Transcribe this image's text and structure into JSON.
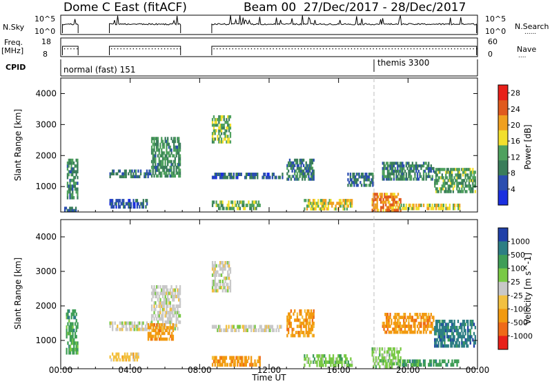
{
  "header": {
    "station": "Dome C East (fitACF)",
    "beam": "Beam 00",
    "date_range": "27/Dec/2017 - 28/Dec/2017"
  },
  "strips": {
    "nsky": {
      "label": "N.Sky",
      "ticks": [
        "10^5",
        "10^0"
      ],
      "right_ticks": [
        "10^5",
        "10^0"
      ],
      "right_label": "N.Search",
      "right_marker": "......"
    },
    "freq": {
      "label_line1": "Freq.",
      "label_line2": "[MHz]",
      "ticks": [
        "18",
        "8"
      ],
      "right_ticks": [
        "60",
        "0"
      ],
      "right_label": "Nave",
      "right_marker": "...."
    },
    "cpid": {
      "label": "CPID",
      "modes": [
        "normal (fast) 151",
        "themis 3300"
      ]
    }
  },
  "colors": {
    "power_scale": [
      "#1b2fe0",
      "#2b4eb0",
      "#3a7d5a",
      "#4fa15e",
      "#f2df2d",
      "#f0a020",
      "#e05a1e",
      "#e8201a"
    ],
    "velocity_scale": [
      "#e8201a",
      "#ef6a18",
      "#f29a10",
      "#f2c040",
      "#c8c8c8",
      "#79c945",
      "#3f9e57",
      "#2c7e84",
      "#2040a8"
    ],
    "gray": "#c8c8c8"
  },
  "chart_data": [
    {
      "type": "heatmap",
      "title": "",
      "xlabel": "",
      "ylabel": "Slant Range [km]",
      "xlim_hours": [
        0,
        24
      ],
      "ylim_km": [
        180,
        4500
      ],
      "x_tick_labels": [
        "00:00",
        "04:00",
        "08:00",
        "12:00",
        "16:00",
        "20:00",
        "00:00"
      ],
      "y_tick_values": [
        1000,
        2000,
        3000,
        4000
      ],
      "colorbar": {
        "label": "Power [dB]",
        "ticks": [
          4,
          8,
          12,
          16,
          20,
          24,
          28
        ],
        "range": [
          0,
          30
        ]
      },
      "regions": [
        {
          "t": [
            0.35,
            1.0
          ],
          "r": [
            600,
            1900
          ],
          "level": 10
        },
        {
          "t": [
            0.2,
            0.9
          ],
          "r": [
            200,
            350
          ],
          "level": 7
        },
        {
          "t": [
            2.8,
            5.2
          ],
          "r": [
            1280,
            1550
          ],
          "level": 8
        },
        {
          "t": [
            5.2,
            6.9
          ],
          "r": [
            1300,
            2600
          ],
          "level": 11
        },
        {
          "t": [
            2.8,
            5.0
          ],
          "r": [
            300,
            600
          ],
          "level": 6
        },
        {
          "t": [
            8.7,
            9.8
          ],
          "r": [
            2400,
            3300
          ],
          "level": 14
        },
        {
          "t": [
            8.7,
            12.8
          ],
          "r": [
            1250,
            1450
          ],
          "level": 7
        },
        {
          "t": [
            8.7,
            11.5
          ],
          "r": [
            250,
            550
          ],
          "level": 13
        },
        {
          "t": [
            13.0,
            14.6
          ],
          "r": [
            1200,
            1900
          ],
          "level": 9
        },
        {
          "t": [
            14.0,
            16.8
          ],
          "r": [
            240,
            600
          ],
          "level": 17
        },
        {
          "t": [
            16.5,
            18.0
          ],
          "r": [
            1000,
            1450
          ],
          "level": 8
        },
        {
          "t": [
            17.9,
            19.6
          ],
          "r": [
            200,
            800
          ],
          "level": 22
        },
        {
          "t": [
            18.5,
            21.5
          ],
          "r": [
            1200,
            1800
          ],
          "level": 10
        },
        {
          "t": [
            21.5,
            23.9
          ],
          "r": [
            800,
            1600
          ],
          "level": 12
        },
        {
          "t": [
            19.5,
            23.0
          ],
          "r": [
            250,
            450
          ],
          "level": 18
        }
      ]
    },
    {
      "type": "heatmap",
      "title": "",
      "xlabel": "Time UT",
      "ylabel": "Slant Range [km]",
      "xlim_hours": [
        0,
        24
      ],
      "ylim_km": [
        180,
        4500
      ],
      "x_tick_labels": [
        "00:00",
        "04:00",
        "08:00",
        "12:00",
        "16:00",
        "20:00",
        "00:00"
      ],
      "y_tick_values": [
        1000,
        2000,
        3000,
        4000
      ],
      "colorbar": {
        "label": "Velocity [m s^-1]",
        "ticks": [
          "1000",
          "500",
          "100",
          "25",
          "-25",
          "-100",
          "-500",
          "-1000"
        ]
      },
      "regions": [
        {
          "t": [
            0.3,
            1.0
          ],
          "r": [
            600,
            1900
          ],
          "vel_class": 6
        },
        {
          "t": [
            2.8,
            5.2
          ],
          "r": [
            1280,
            1550
          ],
          "vel_class": 4
        },
        {
          "t": [
            5.2,
            6.9
          ],
          "r": [
            1300,
            2600
          ],
          "vel_class": 4
        },
        {
          "t": [
            5.0,
            6.5
          ],
          "r": [
            1000,
            1500
          ],
          "vel_class": 2
        },
        {
          "t": [
            2.8,
            4.5
          ],
          "r": [
            400,
            650
          ],
          "vel_class": 3
        },
        {
          "t": [
            8.7,
            9.8
          ],
          "r": [
            2400,
            3300
          ],
          "vel_class": 4
        },
        {
          "t": [
            8.7,
            12.8
          ],
          "r": [
            1250,
            1450
          ],
          "vel_class": 4
        },
        {
          "t": [
            8.7,
            11.5
          ],
          "r": [
            250,
            550
          ],
          "vel_class": 2
        },
        {
          "t": [
            13.0,
            14.6
          ],
          "r": [
            1100,
            1900
          ],
          "vel_class": 2
        },
        {
          "t": [
            14.0,
            16.8
          ],
          "r": [
            240,
            600
          ],
          "vel_class": 5
        },
        {
          "t": [
            17.9,
            19.6
          ],
          "r": [
            200,
            800
          ],
          "vel_class": 5
        },
        {
          "t": [
            18.5,
            21.5
          ],
          "r": [
            1200,
            1800
          ],
          "vel_class": 2
        },
        {
          "t": [
            21.5,
            23.9
          ],
          "r": [
            800,
            1600
          ],
          "vel_class": 7
        },
        {
          "t": [
            19.5,
            23.0
          ],
          "r": [
            250,
            450
          ],
          "vel_class": 6
        }
      ]
    }
  ]
}
